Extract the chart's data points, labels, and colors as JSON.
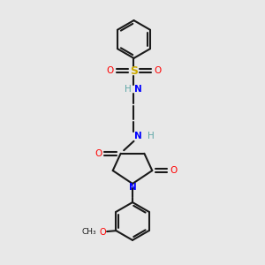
{
  "bg_color": "#e8e8e8",
  "atom_color_C": "#1a1a1a",
  "atom_color_N": "#0000ff",
  "atom_color_O": "#ff0000",
  "atom_color_S": "#ccaa00",
  "atom_color_NH": "#5fa8a8",
  "bond_color": "#1a1a1a",
  "bond_width": 1.5,
  "font_size_atom": 7.5,
  "font_size_small": 6.5,
  "figsize": [
    3.0,
    3.0
  ],
  "dpi": 100,
  "xlim": [
    0,
    10
  ],
  "ylim": [
    0,
    10
  ]
}
